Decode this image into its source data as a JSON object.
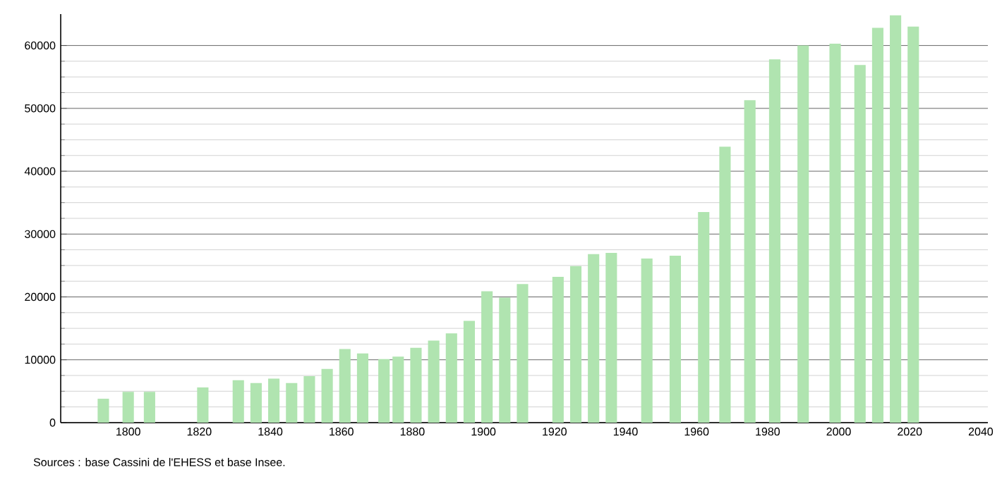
{
  "chart_data": {
    "type": "bar",
    "x": [
      1793,
      1800,
      1806,
      1821,
      1831,
      1836,
      1841,
      1846,
      1851,
      1856,
      1861,
      1866,
      1872,
      1876,
      1881,
      1886,
      1891,
      1896,
      1901,
      1906,
      1911,
      1921,
      1926,
      1931,
      1936,
      1946,
      1954,
      1962,
      1968,
      1975,
      1982,
      1990,
      1999,
      2006,
      2011,
      2016,
      2021
    ],
    "values": [
      3800,
      4900,
      4900,
      5600,
      6750,
      6300,
      7000,
      6300,
      7400,
      8550,
      11700,
      11000,
      10100,
      10500,
      11900,
      13050,
      14200,
      16200,
      20900,
      19900,
      22050,
      23200,
      24900,
      26800,
      27000,
      26100,
      26550,
      33500,
      43900,
      51300,
      57800,
      60000,
      60300,
      56900,
      62800,
      64800,
      63000
    ],
    "color": "#b0e4b0",
    "xlim": [
      1781,
      2042
    ],
    "ylim": [
      0,
      65000
    ],
    "xticks": [
      1800,
      1820,
      1840,
      1860,
      1880,
      1900,
      1920,
      1940,
      1960,
      1980,
      2000,
      2020,
      2040
    ],
    "yticks": [
      0,
      10000,
      20000,
      30000,
      40000,
      50000,
      60000
    ],
    "grid": "y",
    "annotations": [
      "Sources : base Cassini de l'EHESS et base Insee."
    ]
  }
}
